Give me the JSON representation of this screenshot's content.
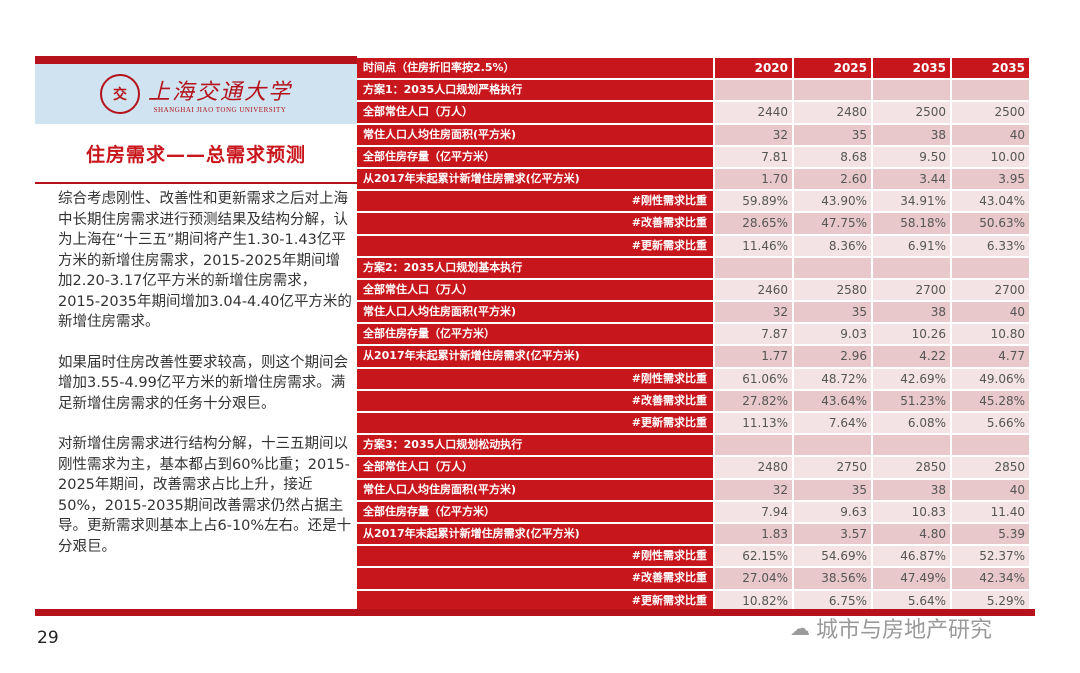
{
  "logo": {
    "seal_text": "交",
    "cn": "上海交通大学",
    "en": "SHANGHAI JIAO TONG UNIVERSITY"
  },
  "title": "住房需求——总需求预测",
  "paragraphs": [
    "综合考虑刚性、改善性和更新需求之后对上海中长期住房需求进行预测结果及结构分解，认为上海在“十三五”期间将产生1.30-1.43亿平方米的新增住房需求，2015-2025年期间增加2.20-3.17亿平方米的新增住房需求，2015-2035年期间增加3.04-4.40亿平方米的新增住房需求。",
    "如果届时住房改善性要求较高，则这个期间会增加3.55-4.99亿平方米的新增住房需求。满足新增住房需求的任务十分艰巨。",
    "对新增住房需求进行结构分解，十三五期间以刚性需求为主，基本都占到60%比重；2015-2025年期间，改善需求占比上升，接近50%，2015-2035期间改善需求仍然占据主导。更新需求则基本上占6-10%左右。还是十分艰巨。"
  ],
  "table": {
    "header": {
      "label": "时间点（住房折旧率按2.5%）",
      "years": [
        "2020",
        "2025",
        "2035",
        "2035"
      ]
    },
    "rows": [
      {
        "label": "方案1：2035人口规划严格执行",
        "values": [
          "",
          "",
          "",
          ""
        ],
        "section": true
      },
      {
        "label": "全部常住人口（万人）",
        "values": [
          "2440",
          "2480",
          "2500",
          "2500"
        ]
      },
      {
        "label": "常住人口人均住房面积(平方米)",
        "values": [
          "32",
          "35",
          "38",
          "40"
        ]
      },
      {
        "label": "全部住房存量（亿平方米）",
        "values": [
          "7.81",
          "8.68",
          "9.50",
          "10.00"
        ]
      },
      {
        "label": "从2017年末起累计新增住房需求(亿平方米)",
        "values": [
          "1.70",
          "2.60",
          "3.44",
          "3.95"
        ]
      },
      {
        "label": "#刚性需求比重",
        "values": [
          "59.89%",
          "43.90%",
          "34.91%",
          "43.04%"
        ],
        "right": true
      },
      {
        "label": "#改善需求比重",
        "values": [
          "28.65%",
          "47.75%",
          "58.18%",
          "50.63%"
        ],
        "right": true
      },
      {
        "label": "#更新需求比重",
        "values": [
          "11.46%",
          "8.36%",
          "6.91%",
          "6.33%"
        ],
        "right": true
      },
      {
        "label": "方案2：2035人口规划基本执行",
        "values": [
          "",
          "",
          "",
          ""
        ],
        "section": true
      },
      {
        "label": "全部常住人口（万人）",
        "values": [
          "2460",
          "2580",
          "2700",
          "2700"
        ]
      },
      {
        "label": "常住人口人均住房面积(平方米)",
        "values": [
          "32",
          "35",
          "38",
          "40"
        ]
      },
      {
        "label": "全部住房存量（亿平方米）",
        "values": [
          "7.87",
          "9.03",
          "10.26",
          "10.80"
        ]
      },
      {
        "label": "从2017年末起累计新增住房需求(亿平方米)",
        "values": [
          "1.77",
          "2.96",
          "4.22",
          "4.77"
        ]
      },
      {
        "label": "#刚性需求比重",
        "values": [
          "61.06%",
          "48.72%",
          "42.69%",
          "49.06%"
        ],
        "right": true
      },
      {
        "label": "#改善需求比重",
        "values": [
          "27.82%",
          "43.64%",
          "51.23%",
          "45.28%"
        ],
        "right": true
      },
      {
        "label": "#更新需求比重",
        "values": [
          "11.13%",
          "7.64%",
          "6.08%",
          "5.66%"
        ],
        "right": true
      },
      {
        "label": "方案3：2035人口规划松动执行",
        "values": [
          "",
          "",
          "",
          ""
        ],
        "section": true
      },
      {
        "label": "全部常住人口（万人）",
        "values": [
          "2480",
          "2750",
          "2850",
          "2850"
        ]
      },
      {
        "label": "常住人口人均住房面积(平方米)",
        "values": [
          "32",
          "35",
          "38",
          "40"
        ]
      },
      {
        "label": "全部住房存量（亿平方米）",
        "values": [
          "7.94",
          "9.63",
          "10.83",
          "11.40"
        ]
      },
      {
        "label": "从2017年末起累计新增住房需求(亿平方米)",
        "values": [
          "1.83",
          "3.57",
          "4.80",
          "5.39"
        ]
      },
      {
        "label": "#刚性需求比重",
        "values": [
          "62.15%",
          "54.69%",
          "46.87%",
          "52.37%"
        ],
        "right": true
      },
      {
        "label": "#改善需求比重",
        "values": [
          "27.04%",
          "38.56%",
          "47.49%",
          "42.34%"
        ],
        "right": true
      },
      {
        "label": "#更新需求比重",
        "values": [
          "10.82%",
          "6.75%",
          "5.64%",
          "5.29%"
        ],
        "right": true
      }
    ]
  },
  "page_number": "29",
  "watermark": "城市与房地产研究",
  "colors": {
    "brand_red": "#c8161d",
    "cell_light": "#f4e3e4",
    "cell_dark": "#e8c8ca"
  }
}
